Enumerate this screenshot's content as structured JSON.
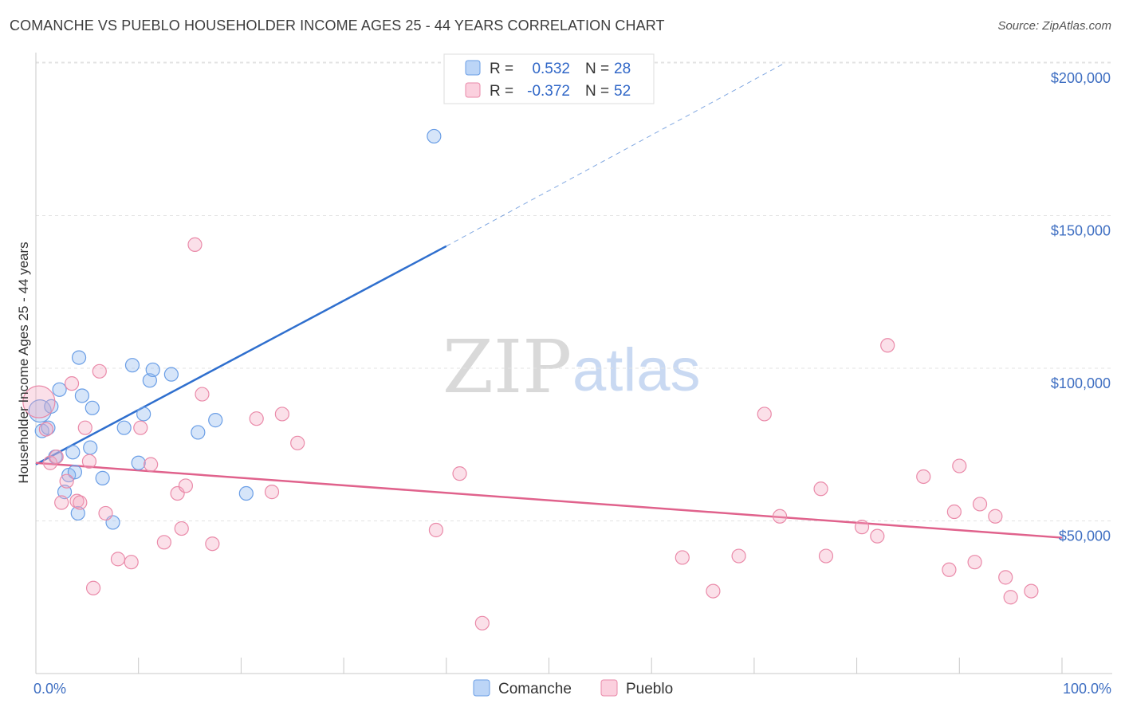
{
  "header": {
    "title": "COMANCHE VS PUEBLO HOUSEHOLDER INCOME AGES 25 - 44 YEARS CORRELATION CHART",
    "source": "Source: ZipAtlas.com"
  },
  "watermark": {
    "zip": "ZIP",
    "atlas": "atlas"
  },
  "legend": {
    "rows": [
      {
        "r_label": "R =",
        "r_value": "0.532",
        "n_label": "N =",
        "n_value": "28",
        "color": "#8ab4ef"
      },
      {
        "r_label": "R =",
        "r_value": "-0.372",
        "n_label": "N =",
        "n_value": "52",
        "color": "#f4a7bf"
      }
    ]
  },
  "bottom_legend": [
    {
      "label": "Comanche",
      "color": "#8ab4ef"
    },
    {
      "label": "Pueblo",
      "color": "#f4a7bf"
    }
  ],
  "chart_data": {
    "type": "scatter",
    "title": "COMANCHE VS PUEBLO HOUSEHOLDER INCOME AGES 25 - 44 YEARS CORRELATION CHART",
    "xlabel": "",
    "ylabel": "Householder Income Ages 25 - 44 years",
    "xlim": [
      0,
      100
    ],
    "ylim": [
      0,
      205000
    ],
    "x_tick_labels": [
      "0.0%",
      "100.0%"
    ],
    "y_ticks": [
      50000,
      100000,
      150000,
      200000
    ],
    "y_tick_labels": [
      "$50,000",
      "$100,000",
      "$150,000",
      "$200,000"
    ],
    "grid": true,
    "series": [
      {
        "name": "Comanche",
        "color": "#8ab4ef",
        "stroke": "#6a9ee6",
        "trend": {
          "x0": 0,
          "y0": 68500,
          "x1": 40,
          "y1": 140000,
          "x_dash_end": 73,
          "y_dash_end": 200000,
          "color": "#2f6fce"
        },
        "points": [
          [
            0.4,
            86000
          ],
          [
            0.6,
            79500
          ],
          [
            1.2,
            80500
          ],
          [
            1.5,
            87500
          ],
          [
            1.9,
            71000
          ],
          [
            2.3,
            93000
          ],
          [
            2.8,
            59500
          ],
          [
            3.2,
            65000
          ],
          [
            3.6,
            72500
          ],
          [
            3.8,
            66000
          ],
          [
            4.1,
            52500
          ],
          [
            4.2,
            103500
          ],
          [
            4.5,
            91000
          ],
          [
            5.3,
            74000
          ],
          [
            5.5,
            87000
          ],
          [
            6.5,
            64000
          ],
          [
            7.5,
            49500
          ],
          [
            8.6,
            80500
          ],
          [
            9.4,
            101000
          ],
          [
            10.0,
            69000
          ],
          [
            10.5,
            85000
          ],
          [
            11.1,
            96000
          ],
          [
            11.4,
            99500
          ],
          [
            13.2,
            98000
          ],
          [
            15.8,
            79000
          ],
          [
            17.5,
            83000
          ],
          [
            20.5,
            59000
          ],
          [
            38.8,
            176000
          ]
        ]
      },
      {
        "name": "Pueblo",
        "color": "#f4a7bf",
        "stroke": "#ea8aa9",
        "trend": {
          "x0": 0,
          "y0": 69000,
          "x1": 100,
          "y1": 44500,
          "color": "#e0628c"
        },
        "points": [
          [
            0.3,
            89000
          ],
          [
            1.0,
            80000
          ],
          [
            1.4,
            69000
          ],
          [
            2.0,
            71000
          ],
          [
            2.5,
            56000
          ],
          [
            3.0,
            63000
          ],
          [
            3.5,
            95000
          ],
          [
            4.0,
            56500
          ],
          [
            4.3,
            56000
          ],
          [
            4.8,
            80500
          ],
          [
            5.2,
            69500
          ],
          [
            5.6,
            28000
          ],
          [
            6.2,
            99000
          ],
          [
            6.8,
            52500
          ],
          [
            8.0,
            37500
          ],
          [
            9.3,
            36500
          ],
          [
            10.2,
            80500
          ],
          [
            11.2,
            68500
          ],
          [
            12.5,
            43000
          ],
          [
            13.8,
            59000
          ],
          [
            14.2,
            47500
          ],
          [
            14.6,
            61500
          ],
          [
            15.5,
            140500
          ],
          [
            16.2,
            91500
          ],
          [
            17.2,
            42500
          ],
          [
            21.5,
            83500
          ],
          [
            23.0,
            59500
          ],
          [
            24.0,
            85000
          ],
          [
            25.5,
            75500
          ],
          [
            39.0,
            47000
          ],
          [
            41.3,
            65500
          ],
          [
            43.5,
            16500
          ],
          [
            63.0,
            38000
          ],
          [
            66.0,
            27000
          ],
          [
            68.5,
            38500
          ],
          [
            71.0,
            85000
          ],
          [
            72.5,
            51500
          ],
          [
            76.5,
            60500
          ],
          [
            77.0,
            38500
          ],
          [
            80.5,
            48000
          ],
          [
            82.0,
            45000
          ],
          [
            83.0,
            107500
          ],
          [
            86.5,
            64500
          ],
          [
            89.0,
            34000
          ],
          [
            89.5,
            53000
          ],
          [
            90.0,
            68000
          ],
          [
            91.5,
            36500
          ],
          [
            92.0,
            55500
          ],
          [
            93.5,
            51500
          ],
          [
            94.5,
            31500
          ],
          [
            95.0,
            25000
          ],
          [
            97.0,
            27000
          ]
        ]
      }
    ]
  }
}
